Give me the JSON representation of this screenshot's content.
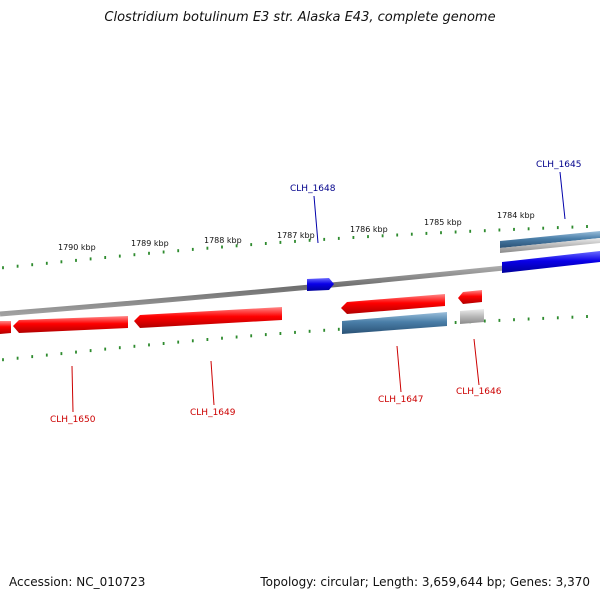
{
  "title": "Clostridium botulinum E3 str. Alaska E43, complete genome",
  "footer": {
    "accession": "Accession: NC_010723",
    "summary": "Topology: circular; Length: 3,659,644 bp; Genes: 3,370"
  },
  "colors": {
    "forward_gene": "#0a00e8",
    "reverse_gene": "#ff0000",
    "forward_label": "#00008b",
    "reverse_label": "#cc0000",
    "backbone": "#7a7a7a",
    "tick": "#2e8b2e",
    "steelblue": "#4a7ea8",
    "grey_feature": "#b8b8b8"
  },
  "scale_labels": [
    "1790 kbp",
    "1789 kbp",
    "1788 kbp",
    "1787 kbp",
    "1786 kbp",
    "1785 kbp",
    "1784 kbp"
  ],
  "genes": {
    "clh_1645": "CLH_1645",
    "clh_1646": "CLH_1646",
    "clh_1647": "CLH_1647",
    "clh_1648": "CLH_1648",
    "clh_1649": "CLH_1649",
    "clh_1650": "CLH_1650"
  }
}
